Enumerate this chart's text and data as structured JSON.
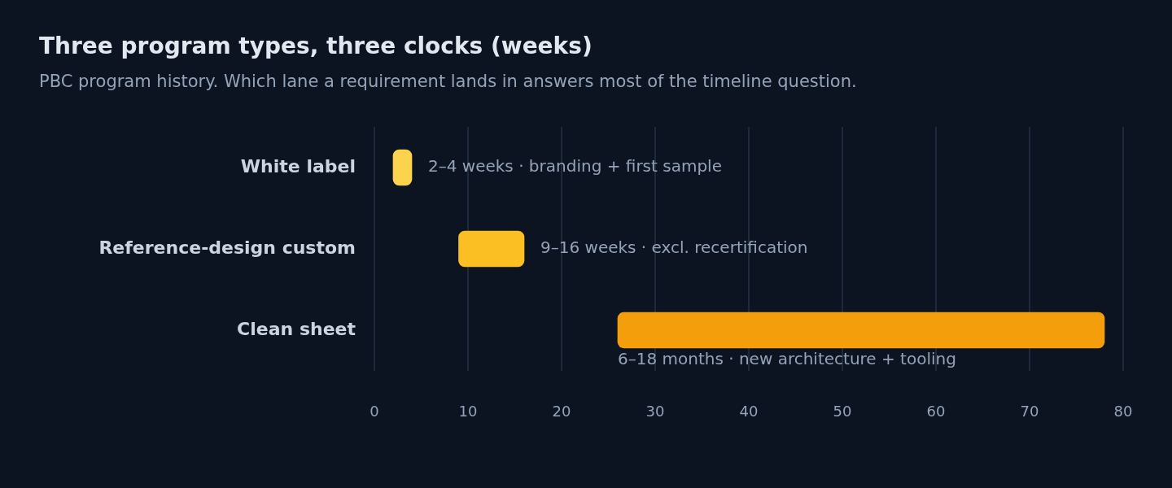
{
  "chart_data": {
    "type": "bar",
    "orientation": "horizontal",
    "title": "Three program types, three clocks (weeks)",
    "subtitle": "PBC program history. Which lane a requirement lands in answers most of the timeline question.",
    "categories": [
      "White label",
      "Reference-design custom",
      "Clean sheet"
    ],
    "base": [
      2,
      9,
      26
    ],
    "values": [
      2,
      7,
      52
    ],
    "colors": [
      "#fcd34d",
      "#fbbf24",
      "#f59e0b"
    ],
    "value_labels": [
      "2–4 weeks · branding + first sample",
      "9–16 weeks · excl. recertification",
      "6–18 months · new architecture + tooling"
    ],
    "xlim": [
      0,
      80
    ],
    "xticks": [
      0,
      10,
      20,
      30,
      40,
      50,
      60,
      70,
      80
    ],
    "grid": "x"
  }
}
